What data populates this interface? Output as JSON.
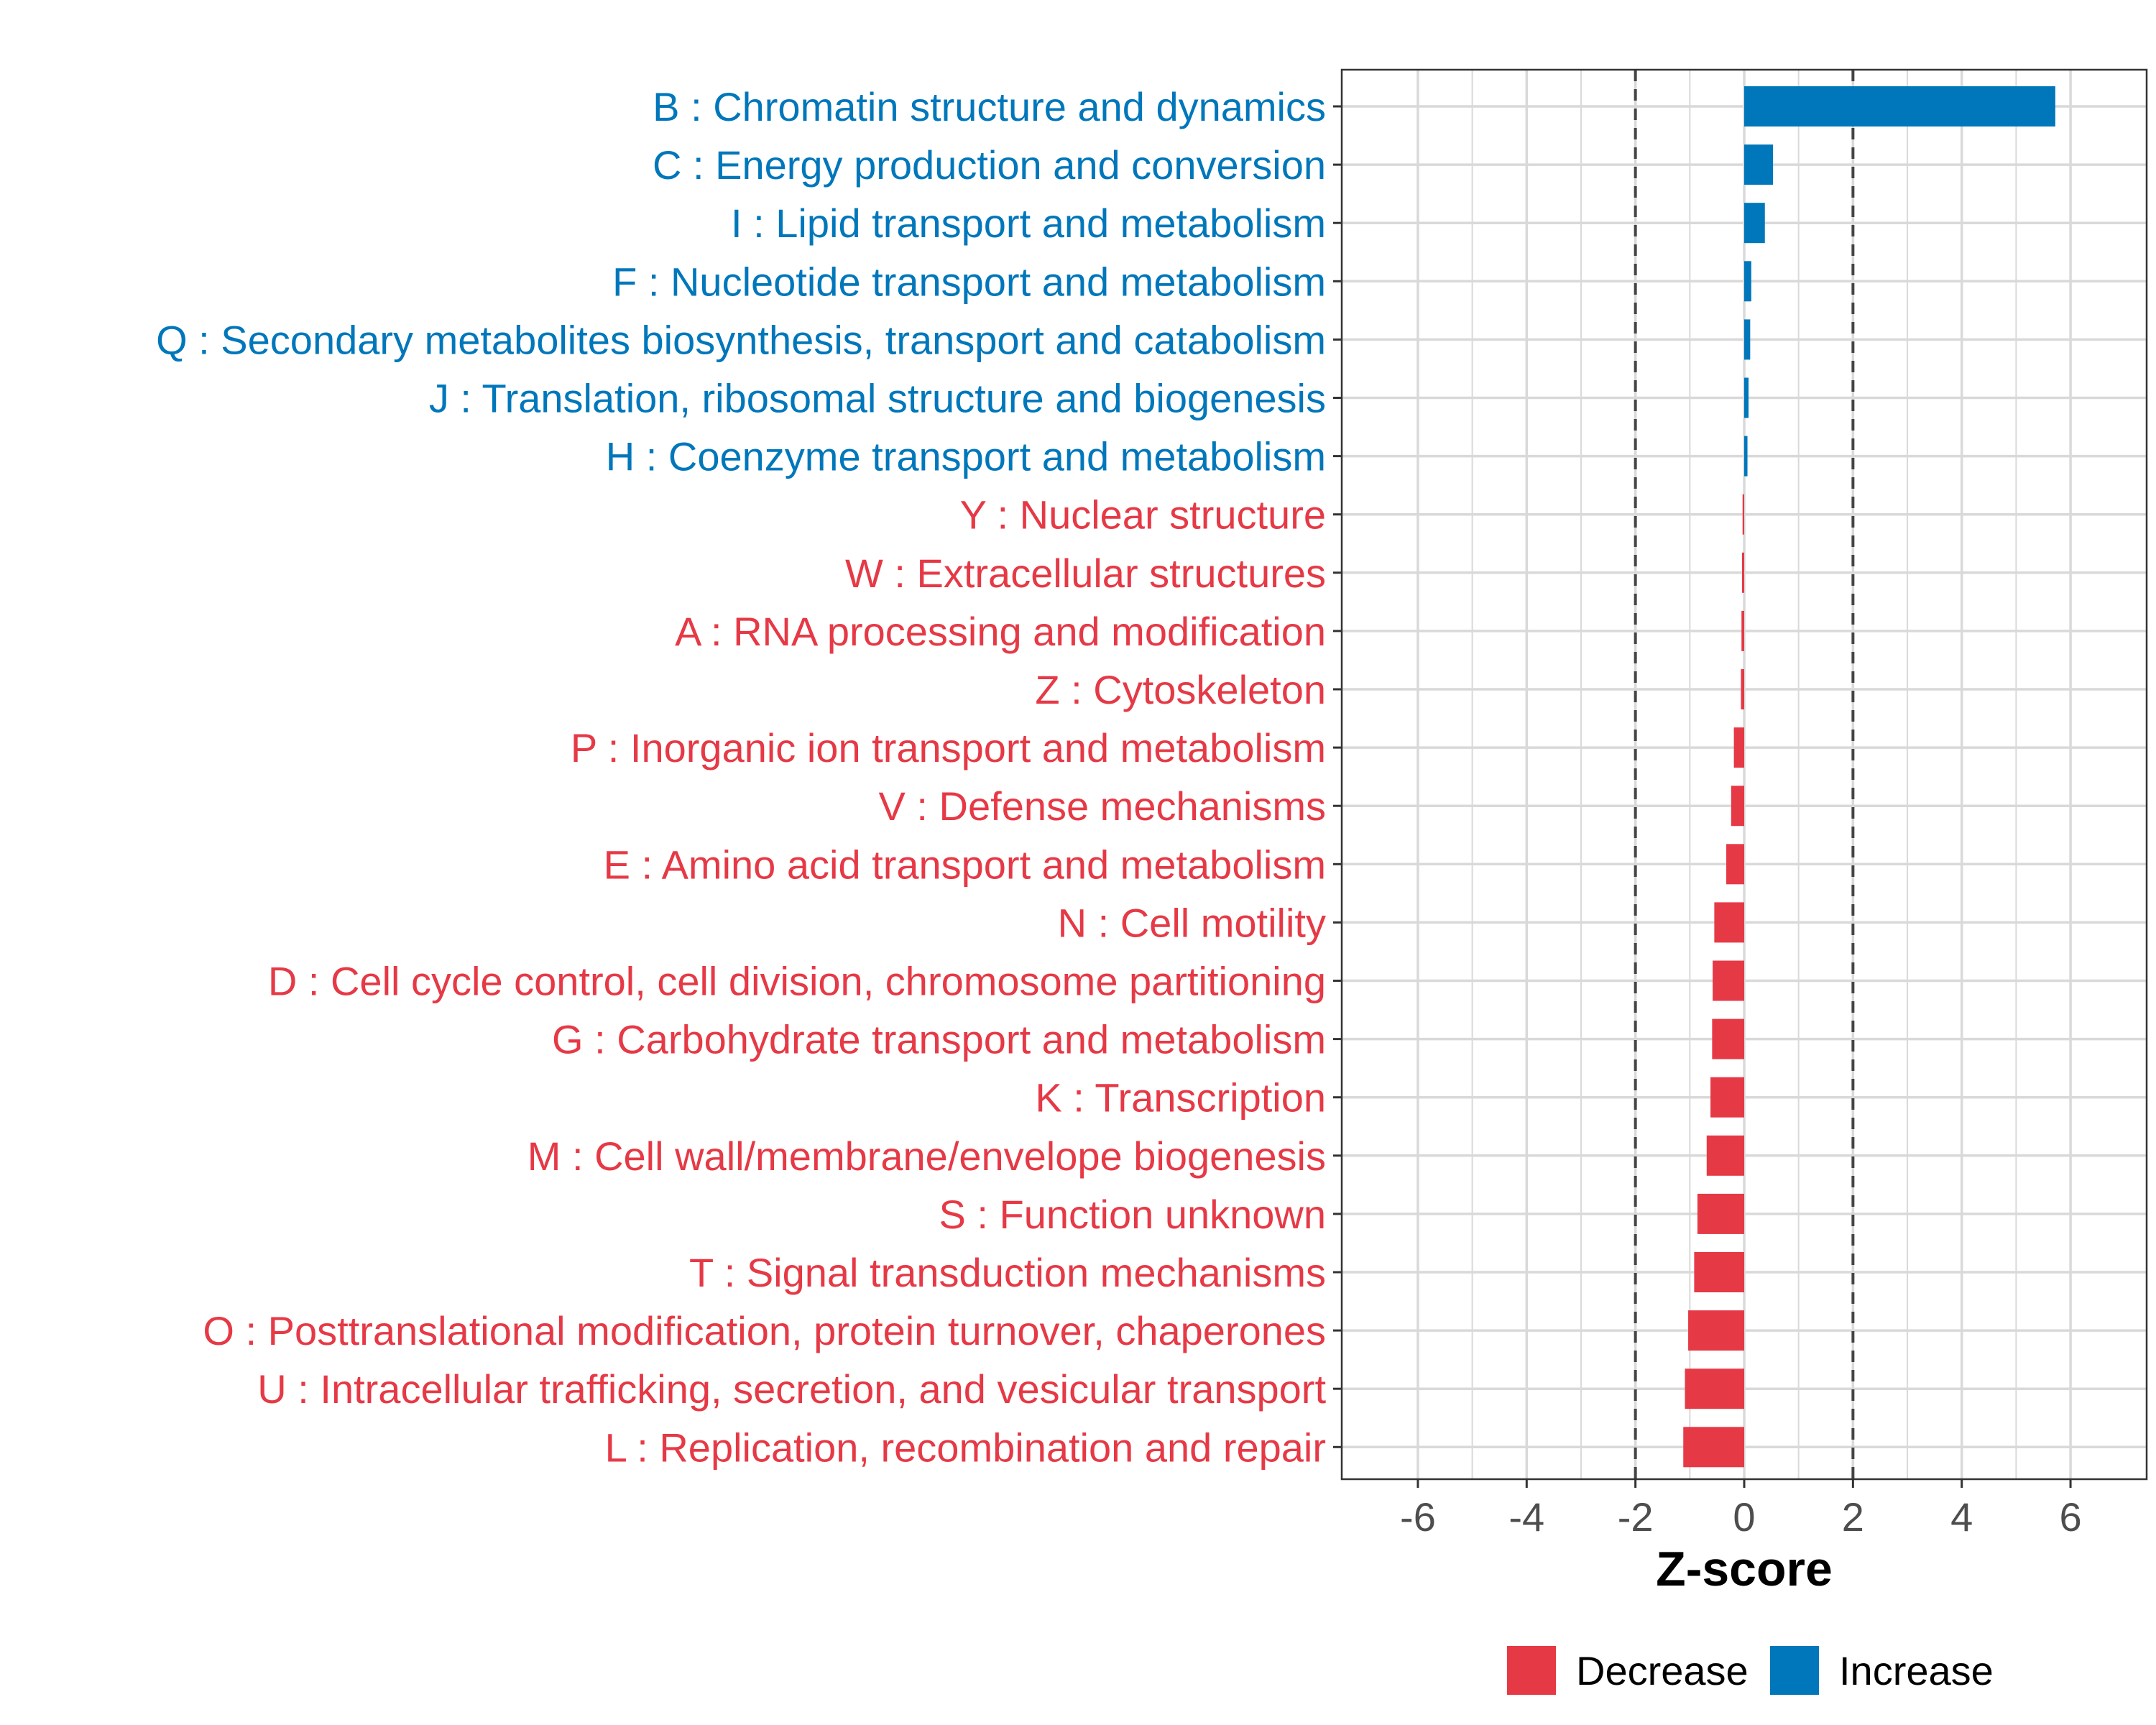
{
  "colors": {
    "decrease": "#e63946",
    "increase": "#0077bb",
    "grid": "#d9d9d9",
    "axis_text": "#4d4d4d",
    "threshold": "#444444"
  },
  "chart_data": {
    "type": "bar",
    "orientation": "horizontal",
    "title": "",
    "xlabel": "Z-score",
    "ylabel": "",
    "xlim": [
      -7.4,
      7.4
    ],
    "xticks": [
      -6,
      -4,
      -2,
      0,
      2,
      4,
      6
    ],
    "xtick_labels": [
      "-6",
      "-4",
      "-2",
      "0",
      "2",
      "4",
      "6"
    ],
    "thresholds": [
      -2,
      2
    ],
    "grid": true,
    "legend": {
      "placement": "bottom",
      "entries": [
        {
          "name": "Decrease",
          "color_key": "decrease"
        },
        {
          "name": "Increase",
          "color_key": "increase"
        }
      ]
    },
    "categories": [
      "B : Chromatin structure and dynamics",
      "C : Energy production and conversion",
      "I : Lipid transport and metabolism",
      "F : Nucleotide transport and metabolism",
      "Q : Secondary metabolites biosynthesis, transport and catabolism",
      "J : Translation, ribosomal structure and biogenesis",
      "H : Coenzyme transport and metabolism",
      "Y : Nuclear structure",
      "W : Extracellular structures",
      "A : RNA processing and modification",
      "Z : Cytoskeleton",
      "P : Inorganic ion transport and metabolism",
      "V : Defense mechanisms",
      "E : Amino acid transport and metabolism",
      "N : Cell motility",
      "D : Cell cycle control, cell division, chromosome partitioning",
      "G : Carbohydrate transport and metabolism",
      "K : Transcription",
      "M : Cell wall/membrane/envelope biogenesis",
      "S : Function unknown",
      "T : Signal transduction mechanisms",
      "O : Posttranslational modification, protein turnover, chaperones",
      "U : Intracellular trafficking, secretion, and vesicular transport",
      "L : Replication, recombination and repair"
    ],
    "values": [
      5.72,
      0.53,
      0.38,
      0.13,
      0.11,
      0.08,
      0.06,
      -0.03,
      -0.04,
      -0.05,
      -0.06,
      -0.19,
      -0.24,
      -0.33,
      -0.55,
      -0.58,
      -0.59,
      -0.62,
      -0.69,
      -0.86,
      -0.92,
      -1.03,
      -1.09,
      -1.12
    ],
    "direction": [
      "Increase",
      "Increase",
      "Increase",
      "Increase",
      "Increase",
      "Increase",
      "Increase",
      "Decrease",
      "Decrease",
      "Decrease",
      "Decrease",
      "Decrease",
      "Decrease",
      "Decrease",
      "Decrease",
      "Decrease",
      "Decrease",
      "Decrease",
      "Decrease",
      "Decrease",
      "Decrease",
      "Decrease",
      "Decrease",
      "Decrease"
    ]
  }
}
